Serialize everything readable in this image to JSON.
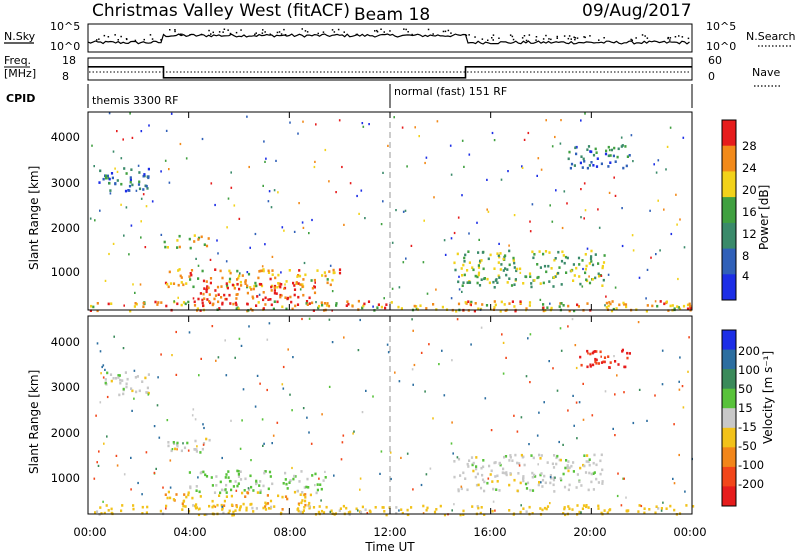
{
  "header": {
    "station": "Christmas Valley West (fitACF)",
    "beam": "Beam 18",
    "date": "09/Aug/2017"
  },
  "summary": {
    "nsky_label": "N.Sky",
    "nsky_ticks": [
      "10^5",
      "10^0"
    ],
    "nsearch_label": "N.Search",
    "nsearch_ticks": [
      "10^5",
      "10^0"
    ],
    "freq_label_1": "Freq.",
    "freq_label_2": "[MHz]",
    "freq_ticks": [
      "18",
      "8"
    ],
    "nave_label": "Nave",
    "nave_ticks": [
      "60",
      "0"
    ],
    "cpid_label": "CPID",
    "cpid_segments": [
      {
        "name": "themis 3300 RF",
        "start": 0
      },
      {
        "name": "normal (fast) 151 RF",
        "start": 12
      }
    ]
  },
  "x_axis": {
    "label": "Time UT",
    "ticks": [
      "00:00",
      "04:00",
      "08:00",
      "12:00",
      "16:00",
      "20:00",
      "00:00"
    ]
  },
  "panels": [
    {
      "name": "power",
      "ylabel": "Slant Range [km]",
      "yticks": [
        "1000",
        "2000",
        "3000",
        "4000"
      ],
      "cbar_label": "Power [dB]",
      "cbar_ticks": [
        "4",
        "8",
        "12",
        "16",
        "20",
        "24",
        "28"
      ],
      "cbar_colors": [
        "#1c2ee6",
        "#3060b8",
        "#3a8a6a",
        "#40a040",
        "#f2d21a",
        "#f28a1a",
        "#e61c1c"
      ]
    },
    {
      "name": "velocity",
      "ylabel": "Slant Range [km]",
      "yticks": [
        "1000",
        "2000",
        "3000",
        "4000"
      ],
      "cbar_label": "Velocity [m s⁻¹]",
      "cbar_ticks": [
        "200",
        "100",
        "50",
        "15",
        "-15",
        "-50",
        "-100",
        "-200"
      ],
      "cbar_colors": [
        "#1c2ee6",
        "#2c6ea0",
        "#3a8a5a",
        "#58c23a",
        "#c8c8c8",
        "#f2c21a",
        "#f2861a",
        "#f2461a",
        "#e61c1c"
      ]
    }
  ],
  "chart_data": {
    "type": "heatmap",
    "x_range_hours": [
      0,
      24
    ],
    "y_range_km": [
      180,
      4500
    ],
    "cpid_change_hour": 12,
    "frequency_mhz": [
      {
        "start": 0,
        "end": 3,
        "value": 14
      },
      {
        "start": 3,
        "end": 15,
        "value": 9
      },
      {
        "start": 15,
        "end": 24,
        "value": 14
      }
    ],
    "power_regions": [
      {
        "t0": 0.4,
        "t1": 2.4,
        "r0": 2800,
        "r1": 3300,
        "level": 8
      },
      {
        "t0": 3.0,
        "t1": 5.0,
        "r0": 1550,
        "r1": 1850,
        "level": 18
      },
      {
        "t0": 3.0,
        "t1": 10.0,
        "r0": 700,
        "r1": 1100,
        "level": 20
      },
      {
        "t0": 4.0,
        "t1": 9.0,
        "r0": 300,
        "r1": 800,
        "level": 26
      },
      {
        "t0": 0.0,
        "t1": 24.0,
        "r0": 180,
        "r1": 400,
        "level": 20
      },
      {
        "t0": 14.5,
        "t1": 20.5,
        "r0": 700,
        "r1": 1500,
        "level": 14
      },
      {
        "t0": 19.0,
        "t1": 21.5,
        "r0": 3300,
        "r1": 3800,
        "level": 8
      }
    ],
    "velocity_regions": [
      {
        "t0": 0.6,
        "t1": 2.4,
        "r0": 2800,
        "r1": 3300,
        "value": 0
      },
      {
        "t0": 3.0,
        "t1": 5.0,
        "r0": 1550,
        "r1": 1850,
        "value": 0
      },
      {
        "t0": 4.0,
        "t1": 9.5,
        "r0": 650,
        "r1": 1150,
        "value": 20
      },
      {
        "t0": 3.0,
        "t1": 9.0,
        "r0": 300,
        "r1": 700,
        "value": -40
      },
      {
        "t0": 0.0,
        "t1": 24.0,
        "r0": 180,
        "r1": 400,
        "value": -30
      },
      {
        "t0": 14.5,
        "t1": 20.5,
        "r0": 700,
        "r1": 1500,
        "value": 0
      },
      {
        "t0": 19.5,
        "t1": 21.5,
        "r0": 3400,
        "r1": 3800,
        "value": -200
      }
    ]
  }
}
